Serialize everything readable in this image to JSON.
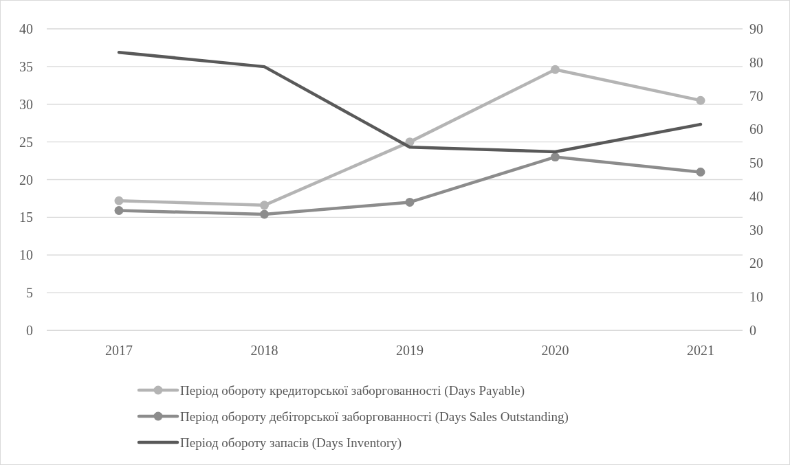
{
  "chart_data": {
    "type": "line",
    "categories": [
      "2017",
      "2018",
      "2019",
      "2020",
      "2021"
    ],
    "series": [
      {
        "name": "Період обороту кредиторської заборгованності (Days Payable)",
        "color": "#b4b4b4",
        "marker": "circle",
        "values": [
          17.2,
          16.6,
          25,
          34.6,
          30.5
        ]
      },
      {
        "name": "Період обороту дебіторської заборгованності (Days Sales Outstanding)",
        "color": "#8c8c8c",
        "marker": "circle",
        "values": [
          15.9,
          15.4,
          17,
          23,
          21
        ]
      },
      {
        "name": "Період обороту запасів (Days Inventory)",
        "color": "#595959",
        "marker": "none",
        "axis": "y2",
        "values": [
          83,
          78.7,
          54.7,
          53.3,
          61.5
        ]
      }
    ],
    "ylim": [
      0,
      40
    ],
    "yticks": [
      0,
      5,
      10,
      15,
      20,
      25,
      30,
      35,
      40
    ],
    "y2lim": [
      0,
      90
    ],
    "y2ticks": [
      0,
      10,
      20,
      30,
      40,
      50,
      60,
      70,
      80,
      90
    ],
    "grid": "y",
    "legend": "bottom"
  }
}
